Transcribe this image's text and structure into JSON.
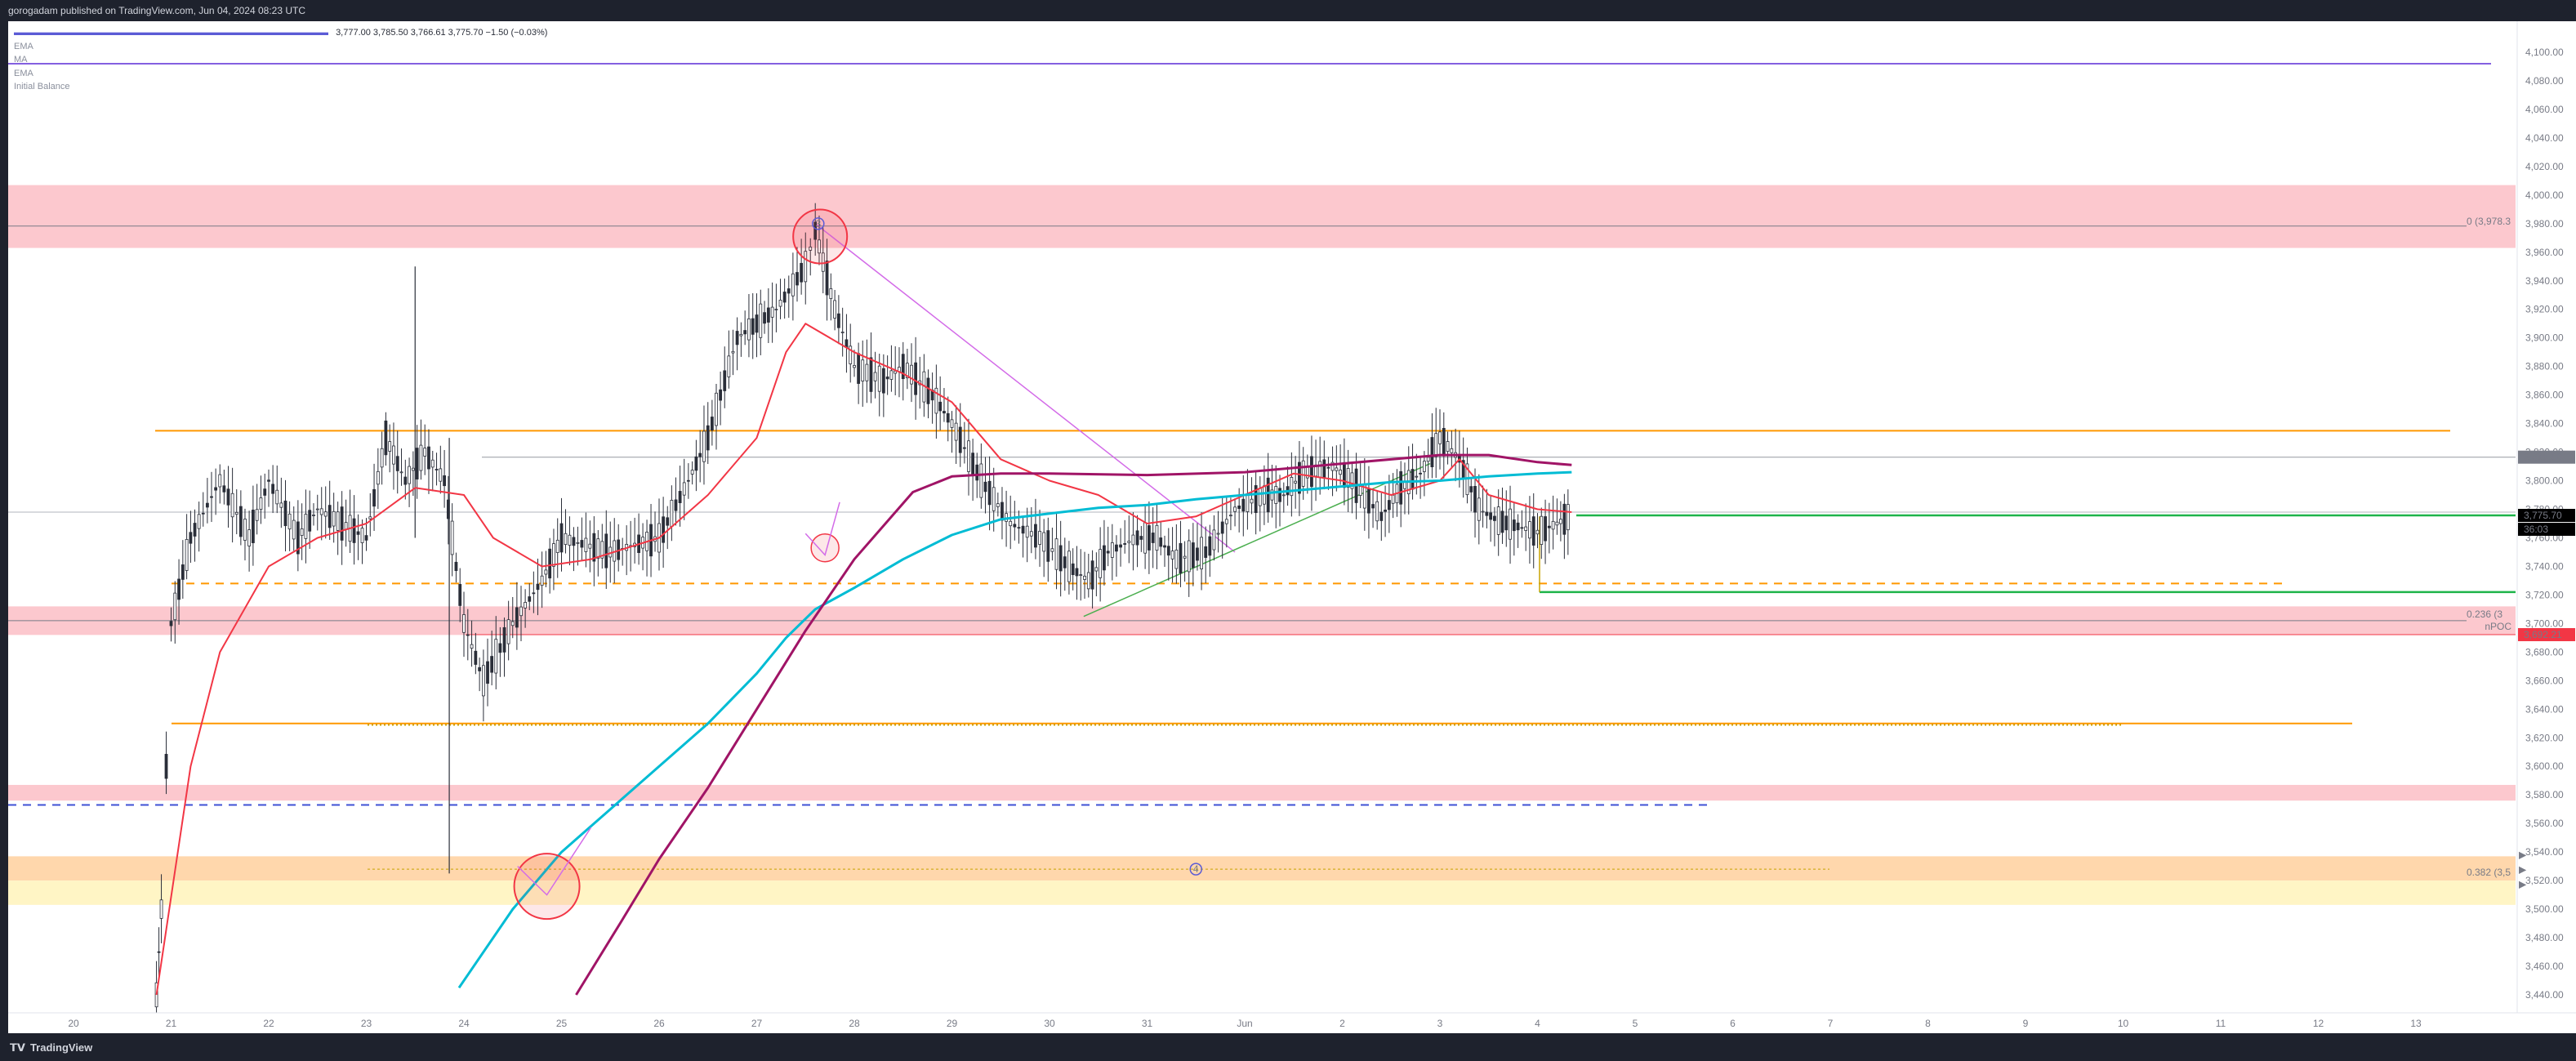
{
  "header": {
    "publish_line": "gorogadam published on TradingView.com, Jun 04, 2024 08:23 UTC"
  },
  "legend": {
    "ohlc": "3,777.00  3,785.50  3,766.61  3,775.70  −1.50 (−0.03%)",
    "indicators": [
      "EMA",
      "MA",
      "EMA",
      "Initial Balance"
    ]
  },
  "footer": {
    "brand": "TradingView",
    "brand_icon": "tradingview-logo-icon"
  },
  "colors": {
    "up": "#2a2e39",
    "ema_fast": "#f23645",
    "ema_slow": "#00bcd4",
    "ma": "#a01466",
    "orange": "#ff9800",
    "zone_red": "#fcc5cb",
    "zone_orange": "#ffd5a8",
    "zone_yellow": "#fff4c2",
    "fib_green": "#089981",
    "trend_magenta": "#d36be8",
    "blue_dash": "#3f51d5"
  },
  "price_axis": {
    "ticks": [
      "4,100.00",
      "4,080.00",
      "4,060.00",
      "4,040.00",
      "4,020.00",
      "4,000.00",
      "3,980.00",
      "3,960.00",
      "3,940.00",
      "3,920.00",
      "3,900.00",
      "3,880.00",
      "3,860.00",
      "3,840.00",
      "3,820.00",
      "3,800.00",
      "3,780.00",
      "3,760.00",
      "3,740.00",
      "3,720.00",
      "3,700.00",
      "3,680.00",
      "3,660.00",
      "3,640.00",
      "3,620.00",
      "3,600.00",
      "3,580.00",
      "3,560.00",
      "3,540.00",
      "3,520.00",
      "3,500.00",
      "3,480.00",
      "3,460.00",
      "3,440.00"
    ],
    "labels": [
      {
        "text": "3,816.50",
        "price": 3816.5,
        "bg": "#787b86",
        "fg": "#ffffff"
      },
      {
        "text": "3,775.70",
        "price": 3775.7,
        "bg": "#000000",
        "fg": "#ffffff"
      },
      {
        "text": "36:03",
        "price": 3766.0,
        "bg": "#000000",
        "fg": "#ffffff"
      },
      {
        "text": "3,692.21",
        "price": 3692.21,
        "bg": "#f23645",
        "fg": "#ffffff"
      }
    ]
  },
  "annotations": {
    "fib_top": "0 (3,978.3",
    "fib_mid": "0.236 (3",
    "fib_low": "0.382 (3,5",
    "npoc": "nPOC",
    "marker_3": "3",
    "marker_4": "4"
  },
  "chart_data": {
    "type": "candlestick",
    "time_axis": [
      "20",
      "21",
      "22",
      "23",
      "24",
      "25",
      "26",
      "27",
      "28",
      "29",
      "30",
      "31",
      "Jun",
      "2",
      "3",
      "4",
      "5",
      "6",
      "7",
      "8",
      "9",
      "10",
      "11",
      "12",
      "13"
    ],
    "ylim": [
      3432,
      4108
    ],
    "last_price": 3775.7,
    "ohlc_last": {
      "open": 3777.0,
      "high": 3785.5,
      "low": 3766.61,
      "close": 3775.7,
      "change": -1.5,
      "change_pct": -0.03
    },
    "price_path_approx": [
      [
        20.85,
        3440
      ],
      [
        20.9,
        3500
      ],
      [
        21.0,
        3700
      ],
      [
        21.2,
        3760
      ],
      [
        21.5,
        3800
      ],
      [
        21.8,
        3760
      ],
      [
        22.0,
        3800
      ],
      [
        22.3,
        3760
      ],
      [
        22.5,
        3780
      ],
      [
        23.0,
        3760
      ],
      [
        23.2,
        3830
      ],
      [
        23.4,
        3800
      ],
      [
        23.6,
        3820
      ],
      [
        23.8,
        3800
      ],
      [
        24.0,
        3700
      ],
      [
        24.2,
        3660
      ],
      [
        24.5,
        3700
      ],
      [
        24.8,
        3730
      ],
      [
        25.0,
        3760
      ],
      [
        25.5,
        3750
      ],
      [
        26.0,
        3760
      ],
      [
        26.3,
        3800
      ],
      [
        26.5,
        3830
      ],
      [
        26.8,
        3900
      ],
      [
        27.2,
        3920
      ],
      [
        27.5,
        3950
      ],
      [
        27.6,
        3975
      ],
      [
        27.8,
        3920
      ],
      [
        28.0,
        3880
      ],
      [
        28.3,
        3870
      ],
      [
        28.5,
        3880
      ],
      [
        28.8,
        3860
      ],
      [
        29.0,
        3840
      ],
      [
        29.3,
        3800
      ],
      [
        29.6,
        3770
      ],
      [
        29.9,
        3760
      ],
      [
        30.2,
        3740
      ],
      [
        30.4,
        3730
      ],
      [
        30.6,
        3750
      ],
      [
        30.9,
        3760
      ],
      [
        31.1,
        3760
      ],
      [
        31.3,
        3745
      ],
      [
        31.6,
        3750
      ],
      [
        31.9,
        3780
      ],
      [
        32.2,
        3790
      ],
      [
        32.4,
        3790
      ],
      [
        32.6,
        3805
      ],
      [
        32.9,
        3810
      ],
      [
        33.1,
        3800
      ],
      [
        33.4,
        3775
      ],
      [
        33.6,
        3795
      ],
      [
        33.8,
        3805
      ],
      [
        34.0,
        3830
      ],
      [
        34.2,
        3815
      ],
      [
        34.4,
        3780
      ],
      [
        34.6,
        3772
      ],
      [
        34.8,
        3768
      ],
      [
        35.0,
        3764
      ],
      [
        35.2,
        3770
      ],
      [
        35.35,
        3776
      ]
    ],
    "series": [
      {
        "name": "EMA",
        "values": [
          [
            20.85,
            3440
          ],
          [
            21.2,
            3600
          ],
          [
            21.5,
            3680
          ],
          [
            22.0,
            3740
          ],
          [
            22.5,
            3760
          ],
          [
            23.0,
            3770
          ],
          [
            23.5,
            3795
          ],
          [
            24.0,
            3790
          ],
          [
            24.3,
            3760
          ],
          [
            24.8,
            3740
          ],
          [
            25.3,
            3745
          ],
          [
            26.0,
            3760
          ],
          [
            26.5,
            3790
          ],
          [
            27.0,
            3830
          ],
          [
            27.3,
            3890
          ],
          [
            27.5,
            3910
          ],
          [
            28.0,
            3890
          ],
          [
            28.5,
            3875
          ],
          [
            29.0,
            3855
          ],
          [
            29.5,
            3815
          ],
          [
            30.0,
            3800
          ],
          [
            30.5,
            3790
          ],
          [
            31.0,
            3770
          ],
          [
            31.5,
            3775
          ],
          [
            32.0,
            3790
          ],
          [
            32.5,
            3805
          ],
          [
            33.0,
            3800
          ],
          [
            33.5,
            3790
          ],
          [
            34.0,
            3800
          ],
          [
            34.2,
            3815
          ],
          [
            34.5,
            3790
          ],
          [
            35.0,
            3780
          ],
          [
            35.35,
            3778
          ]
        ]
      },
      {
        "name": "EMA",
        "values": [
          [
            23.95,
            3445
          ],
          [
            24.5,
            3500
          ],
          [
            25.0,
            3540
          ],
          [
            25.5,
            3570
          ],
          [
            26.0,
            3600
          ],
          [
            26.5,
            3630
          ],
          [
            27.0,
            3665
          ],
          [
            27.3,
            3690
          ],
          [
            27.6,
            3710
          ],
          [
            28.0,
            3725
          ],
          [
            28.5,
            3745
          ],
          [
            29.0,
            3762
          ],
          [
            29.5,
            3773
          ],
          [
            30.0,
            3777
          ],
          [
            30.5,
            3781
          ],
          [
            31.0,
            3783
          ],
          [
            31.5,
            3787
          ],
          [
            32.0,
            3790
          ],
          [
            32.5,
            3793
          ],
          [
            33.0,
            3796
          ],
          [
            33.5,
            3799
          ],
          [
            34.0,
            3800
          ],
          [
            34.5,
            3803
          ],
          [
            35.0,
            3805
          ],
          [
            35.35,
            3806
          ]
        ]
      },
      {
        "name": "MA",
        "values": [
          [
            25.15,
            3440
          ],
          [
            25.6,
            3490
          ],
          [
            26.0,
            3535
          ],
          [
            26.5,
            3585
          ],
          [
            27.0,
            3640
          ],
          [
            27.5,
            3695
          ],
          [
            28.0,
            3745
          ],
          [
            28.6,
            3792
          ],
          [
            29.0,
            3803
          ],
          [
            29.5,
            3805
          ],
          [
            30.0,
            3805
          ],
          [
            31.0,
            3804
          ],
          [
            32.0,
            3806
          ],
          [
            33.0,
            3812
          ],
          [
            34.0,
            3818
          ],
          [
            34.5,
            3818
          ],
          [
            35.0,
            3813
          ],
          [
            35.35,
            3811
          ]
        ]
      }
    ],
    "levels": [
      {
        "price": 3978.3,
        "label": "0 (3,978.3"
      },
      {
        "price": 3835,
        "label": ""
      },
      {
        "price": 3816.5,
        "label": ""
      },
      {
        "price": 3775.7,
        "label": ""
      },
      {
        "price": 3728,
        "label": ""
      },
      {
        "price": 3722,
        "label": ""
      },
      {
        "price": 3692.21,
        "label": "nPOC"
      },
      {
        "price": 3630,
        "label": ""
      },
      {
        "price": 3573,
        "label": ""
      },
      {
        "price": 3527,
        "label": "0.382 (3,5"
      }
    ],
    "zones": [
      {
        "from": 3963,
        "to": 4007,
        "color": "zone_red"
      },
      {
        "from": 3692,
        "to": 3712,
        "color": "zone_red"
      },
      {
        "from": 3576,
        "to": 3587,
        "color": "zone_red"
      },
      {
        "from": 3520,
        "to": 3537,
        "color": "zone_orange"
      },
      {
        "from": 3503,
        "to": 3520,
        "color": "zone_yellow"
      }
    ],
    "grid": false
  }
}
